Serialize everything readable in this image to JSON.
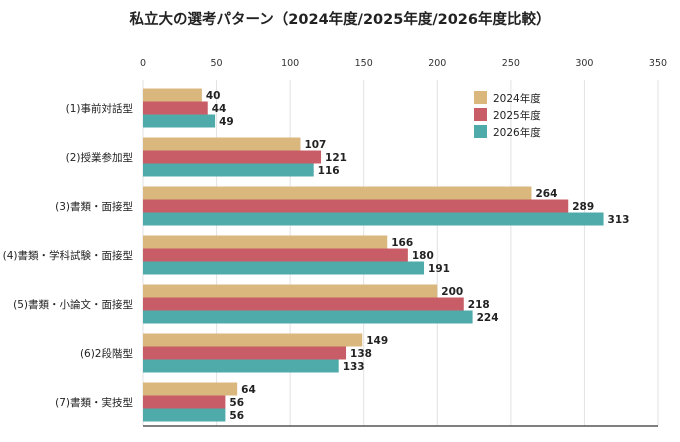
{
  "chart_data": {
    "type": "bar",
    "orientation": "horizontal",
    "title": "私立大の選考パターン（2024年度/2025年度/2026年度比較）",
    "categories": [
      "(1)事前対話型",
      "(2)授業参加型",
      "(3)書類・面接型",
      "(4)書類・学科試験・面接型",
      "(5)書類・小論文・面接型",
      "(6)2段階型",
      "(7)書類・実技型"
    ],
    "series": [
      {
        "name": "2024年度",
        "color": "#d9b77d",
        "values": [
          40,
          107,
          264,
          166,
          200,
          149,
          64
        ]
      },
      {
        "name": "2025年度",
        "color": "#c95d67",
        "values": [
          44,
          121,
          289,
          180,
          218,
          138,
          56
        ]
      },
      {
        "name": "2026年度",
        "color": "#4faaaa",
        "values": [
          49,
          116,
          313,
          191,
          224,
          133,
          56
        ]
      }
    ],
    "xlim": [
      0,
      350
    ],
    "xticks": [
      0,
      50,
      100,
      150,
      200,
      250,
      300,
      350
    ],
    "xaxis_position": "top",
    "grid": true,
    "legend_position": "top-right",
    "data_labels": true
  }
}
